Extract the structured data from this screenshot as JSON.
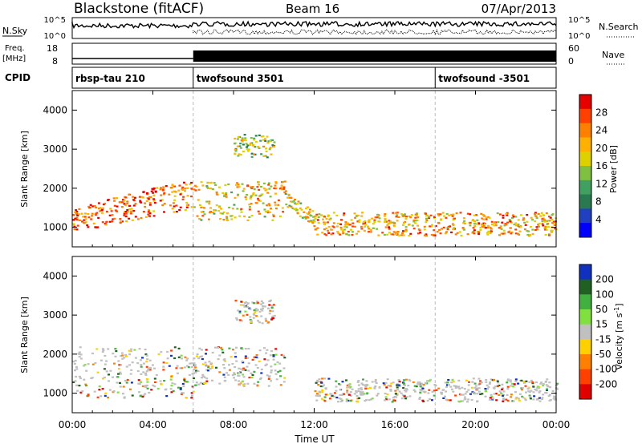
{
  "header": {
    "station": "Blackstone (fitACF)",
    "beam": "Beam 16",
    "date": "07/Apr/2013"
  },
  "top_panels": {
    "nsky_label": "N.Sky",
    "nsky_ticks": [
      "10^5",
      "10^0"
    ],
    "nsearch_label": "N.Search",
    "nsearch_ticks": [
      "10^5",
      "10^0"
    ],
    "freq_label_1": "Freq.",
    "freq_label_2": "[MHz]",
    "freq_ticks": [
      "18",
      "8"
    ],
    "nave_label": "Nave",
    "nave_ticks": [
      "60",
      "0"
    ],
    "cpid_label": "CPID",
    "cpid_segments": [
      {
        "label": "rbsp-tau 210",
        "start_h": 0
      },
      {
        "label": "twofsound 3501",
        "start_h": 6
      },
      {
        "label": "twofsound -3501",
        "start_h": 18
      }
    ]
  },
  "axes": {
    "ylabel": "Slant Range [km]",
    "yticks": [
      "4000",
      "3000",
      "2000",
      "1000"
    ],
    "xticks": [
      "00:00",
      "04:00",
      "08:00",
      "12:00",
      "16:00",
      "20:00",
      "00:00"
    ],
    "xlabel": "Time UT"
  },
  "colorbars": {
    "power": {
      "label": "Power [dB]",
      "ticks": [
        "28",
        "24",
        "20",
        "16",
        "12",
        "8",
        "4"
      ],
      "colors": [
        "#e60000",
        "#ff4000",
        "#ff8000",
        "#ffb000",
        "#dfd000",
        "#80c040",
        "#40a060",
        "#2a7a50",
        "#2040c0",
        "#0000ff"
      ]
    },
    "velocity": {
      "label": "Velocity [m s",
      "label_sup": "-1",
      "label_end": "]",
      "ticks": [
        "200",
        "100",
        "50",
        "15",
        "-15",
        "-50",
        "-100",
        "-200"
      ],
      "colors": [
        "#1030c0",
        "#206020",
        "#40b040",
        "#80e040",
        "#c0c0c0",
        "#ffd000",
        "#ff8000",
        "#ff4000",
        "#e00000"
      ]
    }
  },
  "chart_data": [
    {
      "type": "heatmap",
      "title": "Power",
      "x_range_hours": [
        0,
        24
      ],
      "y_range_km": [
        500,
        4500
      ],
      "xlabel": "Time UT",
      "ylabel": "Slant Range [km]",
      "colorbar": "Power [dB]",
      "features": [
        {
          "name": "near-range band",
          "t_start_h": 0,
          "t_end_h": 6,
          "range_start_km": 900,
          "range_end_km": 2300,
          "power_db": 24
        },
        {
          "name": "dense patch",
          "t_start_h": 6,
          "t_end_h": 10.5,
          "range_start_km": 1200,
          "range_end_km": 2200,
          "power_db": 18
        },
        {
          "name": "far patch",
          "t_start_h": 8,
          "t_end_h": 10,
          "range_start_km": 2800,
          "range_end_km": 3400,
          "power_db": 14
        },
        {
          "name": "descending band",
          "t_start_h": 10.5,
          "t_end_h": 12,
          "range_start_km": 1000,
          "range_end_km": 2000,
          "power_db": 16
        },
        {
          "name": "afternoon band",
          "t_start_h": 12,
          "t_end_h": 24,
          "range_start_km": 800,
          "range_end_km": 1400,
          "power_db": 20
        }
      ]
    },
    {
      "type": "heatmap",
      "title": "Velocity",
      "x_range_hours": [
        0,
        24
      ],
      "y_range_km": [
        500,
        4500
      ],
      "xlabel": "Time UT",
      "ylabel": "Slant Range [km]",
      "colorbar": "Velocity [m s-1]",
      "features": [
        {
          "name": "ground scatter band",
          "t_start_h": 0,
          "t_end_h": 6,
          "range_start_km": 900,
          "range_end_km": 2200,
          "velocity": 0
        },
        {
          "name": "mixed patch",
          "t_start_h": 6,
          "t_end_h": 10.5,
          "range_start_km": 1200,
          "range_end_km": 2200,
          "velocity": -100
        },
        {
          "name": "far patch",
          "t_start_h": 8,
          "t_end_h": 10,
          "range_start_km": 2800,
          "range_end_km": 3400,
          "velocity": 150
        },
        {
          "name": "afternoon band",
          "t_start_h": 12,
          "t_end_h": 24,
          "range_start_km": 800,
          "range_end_km": 1400,
          "velocity": 0
        }
      ]
    }
  ]
}
